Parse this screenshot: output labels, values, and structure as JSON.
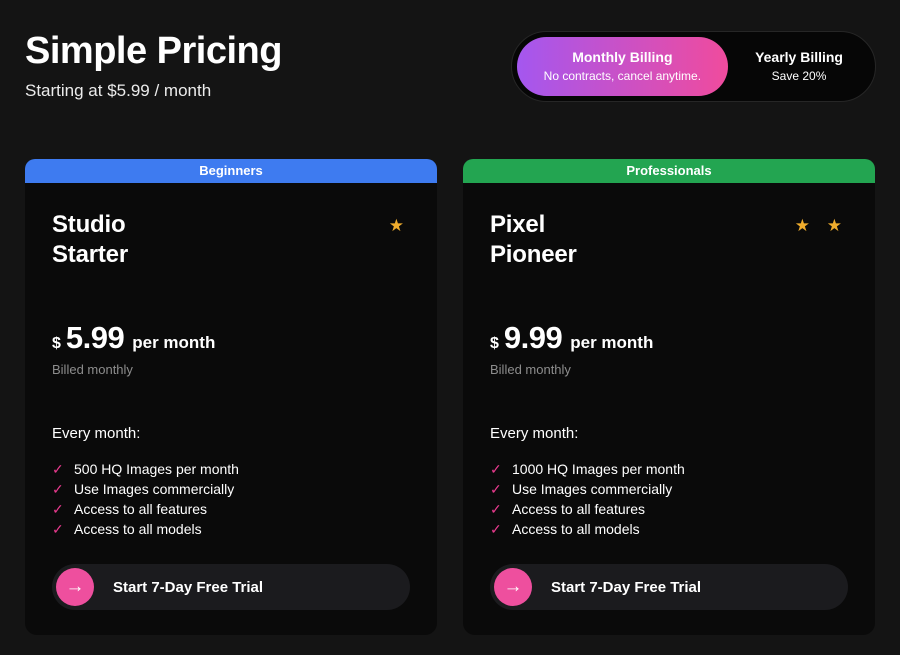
{
  "page": {
    "title": "Simple Pricing",
    "subtitle": "Starting at $5.99 / month"
  },
  "billing_toggle": {
    "monthly": {
      "label": "Monthly Billing",
      "sublabel": "No contracts, cancel anytime.",
      "selected": true,
      "gradient_from": "#a457ef",
      "gradient_to": "#f04b9d"
    },
    "yearly": {
      "label": "Yearly Billing",
      "sublabel": "Save 20%",
      "selected": false
    }
  },
  "cards": [
    {
      "badge": "Beginners",
      "badge_color": "#3e7bf0",
      "title": "Studio\nStarter",
      "stars_count": 1,
      "stars_glyphs": "★",
      "currency": "$",
      "price": "5.99",
      "period": "per month",
      "billing_note": "Billed monthly",
      "features_heading": "Every month:",
      "features": [
        "500 HQ Images per month",
        "Use Images commercially",
        "Access to all features",
        "Access to all models"
      ],
      "cta_label": "Start 7-Day Free Trial"
    },
    {
      "badge": "Professionals",
      "badge_color": "#23a551",
      "title": "Pixel\nPioneer",
      "stars_count": 2,
      "stars_glyphs": "★ ★",
      "currency": "$",
      "price": "9.99",
      "period": "per month",
      "billing_note": "Billed monthly",
      "features_heading": "Every month:",
      "features": [
        "1000 HQ Images per month",
        "Use Images commercially",
        "Access to all features",
        "Access to all models"
      ],
      "cta_label": "Start 7-Day Free Trial"
    }
  ],
  "icons": {
    "check": "✓",
    "arrow_right": "→"
  },
  "colors": {
    "page_bg": "#141414",
    "card_bg": "#0a0a0a",
    "check": "#e93a8e",
    "star": "#f0ad2d",
    "cta_circle": "#ee4f9e",
    "cta_bg": "#1b1b1e"
  }
}
